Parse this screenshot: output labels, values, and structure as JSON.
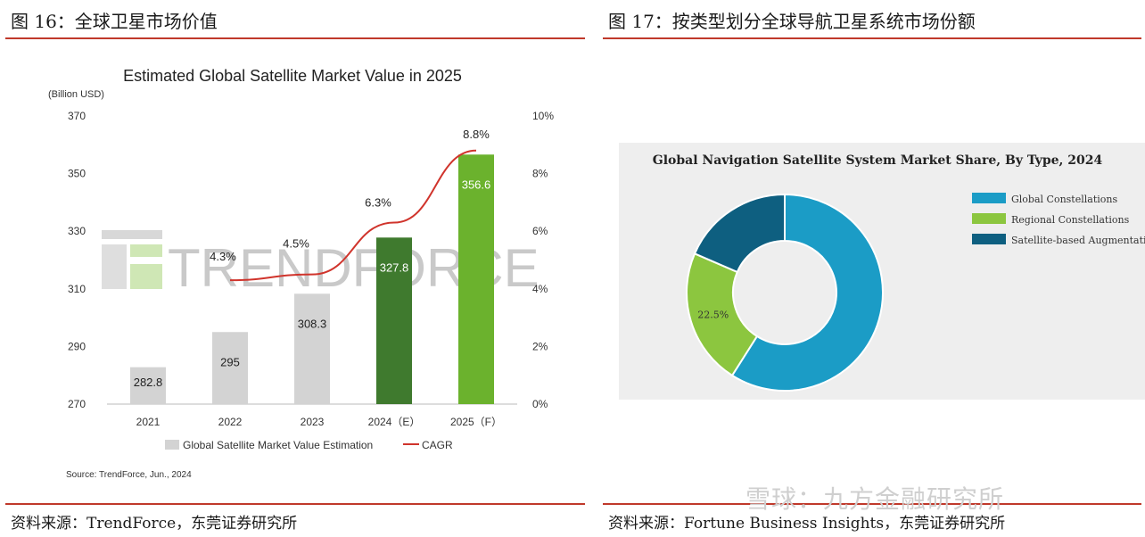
{
  "figure16": {
    "heading": "图 16：全球卫星市场价值",
    "source": "资料来源：TrendForce，东莞证券研究所"
  },
  "figure17": {
    "heading": "图 17：按类型划分全球导航卫星系统市场份额",
    "source": "资料来源：Fortune Business Insights，东莞证券研究所"
  },
  "watermark": "雪球：九方金融研究所",
  "colors": {
    "rule": "#c0392b",
    "bar_grey": "#d3d3d3",
    "bar_dark_green": "#3f7a2e",
    "bar_light_green": "#6bb22d",
    "cagr_line": "#d0342c",
    "global_constellations": "#1b9cc6",
    "regional_constellations": "#8cc63f",
    "satellite_based_augmentations": "#0e5f80"
  },
  "chart_data": [
    {
      "type": "bar",
      "title": "Estimated Global Satellite Market Value in 2025",
      "ylabel": "(Billion USD)",
      "categories": [
        "2021",
        "2022",
        "2023",
        "2024（E）",
        "2025（F）"
      ],
      "ylim": [
        270,
        370
      ],
      "yticks": [
        "370",
        "350",
        "330",
        "310",
        "290",
        "270"
      ],
      "y2lim": [
        0,
        10
      ],
      "y2ticks": [
        "10%",
        "8%",
        "6%",
        "4%",
        "2%",
        "0%"
      ],
      "series": [
        {
          "name": "Global Satellite Market Value Estimation",
          "kind": "bar",
          "values": [
            282.8,
            295,
            308.3,
            327.8,
            356.6
          ],
          "labels": [
            "282.8",
            "295",
            "308.3",
            "327.8",
            "356.6"
          ]
        },
        {
          "name": "CAGR",
          "kind": "line",
          "axis": "right",
          "values": [
            null,
            4.3,
            4.5,
            6.3,
            8.8
          ],
          "labels": [
            "",
            "4.3%",
            "4.5%",
            "6.3%",
            "8.8%"
          ]
        }
      ],
      "watermark_text": "TRENDFORCE",
      "source": "Source: TrendForce, Jun., 2024",
      "legend": "bottom",
      "grid": false
    },
    {
      "type": "pie",
      "donut": true,
      "title": "Global Navigation Satellite System Market Share, By Type, 2024",
      "slices": [
        {
          "name": "Global Constellations",
          "value": 59.0,
          "label": ""
        },
        {
          "name": "Regional Constellations",
          "value": 22.5,
          "label": "22.5%"
        },
        {
          "name": "Satellite-based Augmentations",
          "value": 18.5,
          "label": ""
        }
      ],
      "legend": "right"
    }
  ]
}
